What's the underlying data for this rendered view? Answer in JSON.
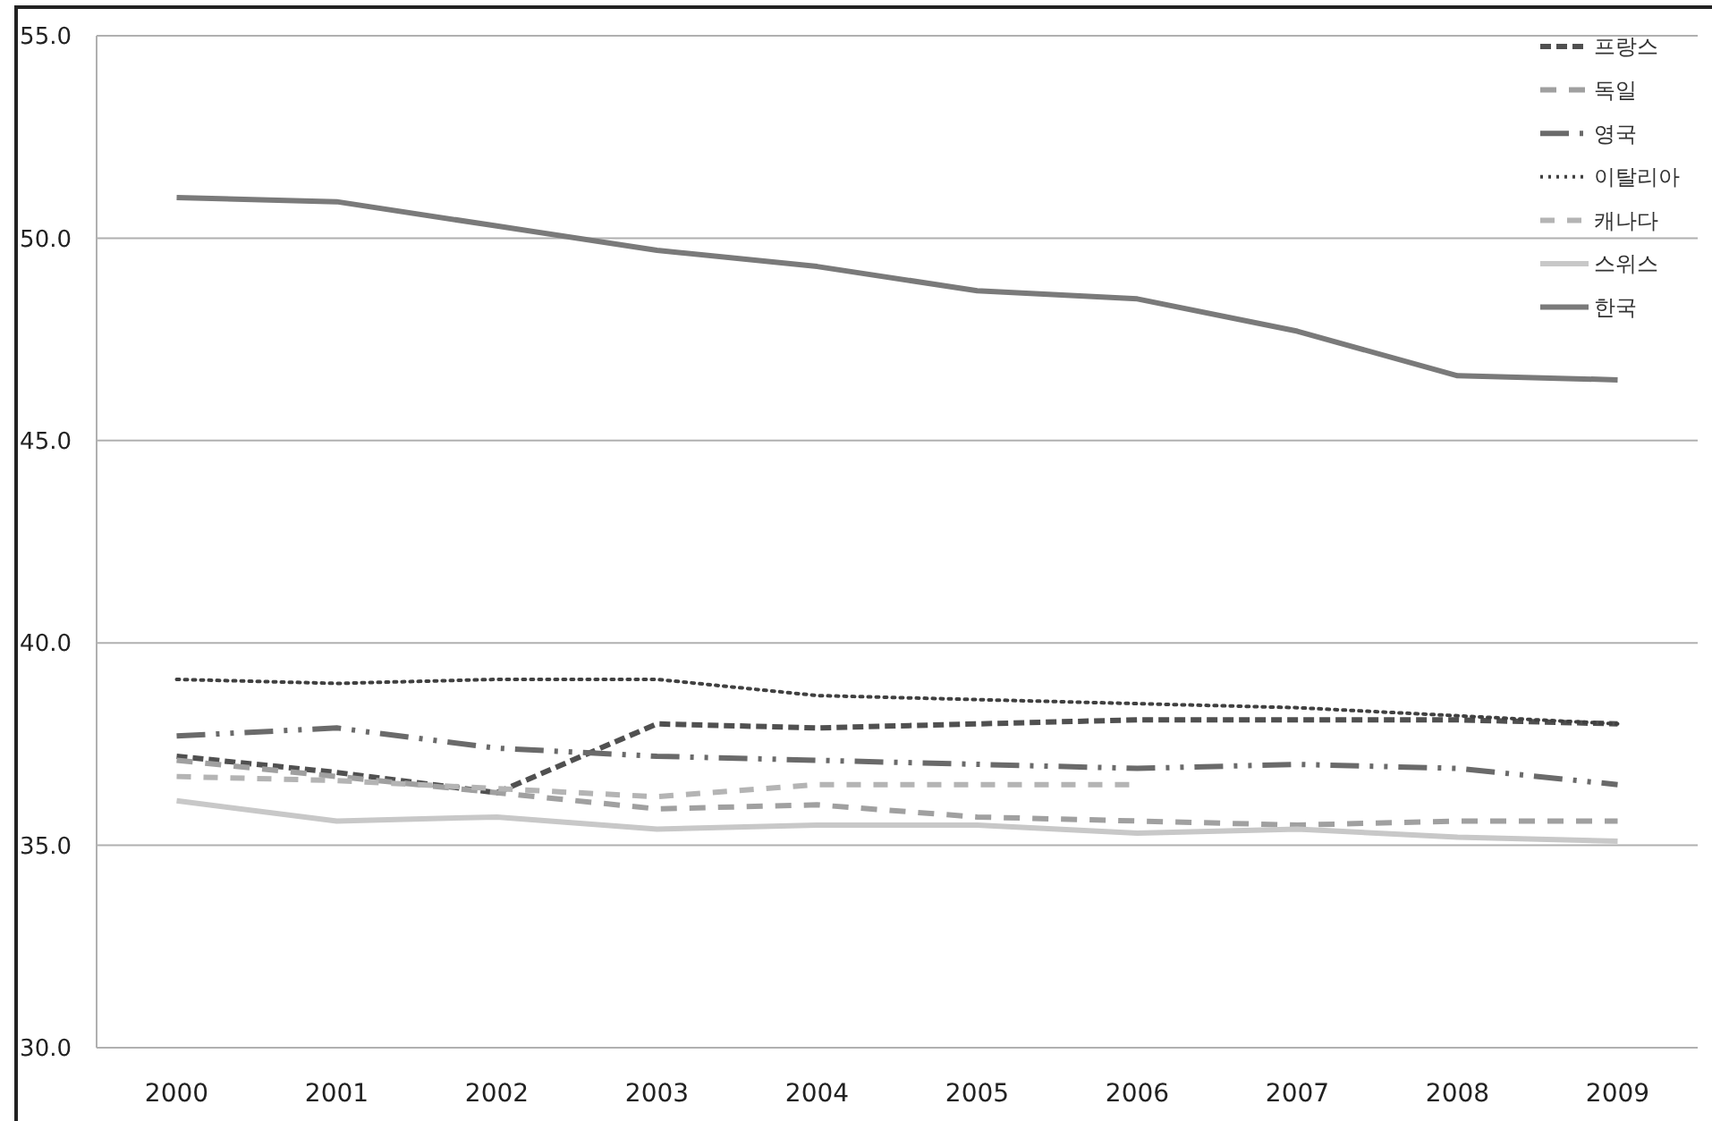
{
  "chart_data": {
    "type": "line",
    "categories": [
      "2000",
      "2001",
      "2002",
      "2003",
      "2004",
      "2005",
      "2006",
      "2007",
      "2008",
      "2009"
    ],
    "series": [
      {
        "name": "프랑스",
        "color": "#505050",
        "line_style": "dashed",
        "values": [
          37.2,
          36.8,
          36.3,
          38.0,
          37.9,
          38.0,
          38.1,
          38.1,
          38.1,
          38.0
        ]
      },
      {
        "name": "독일",
        "color": "#a0a0a0",
        "line_style": "dashed",
        "values": [
          37.1,
          36.7,
          36.3,
          35.9,
          36.0,
          35.7,
          35.6,
          35.5,
          35.6,
          35.6
        ]
      },
      {
        "name": "영국",
        "color": "#6a6a6a",
        "line_style": "dashed",
        "values": [
          37.7,
          37.9,
          37.4,
          37.2,
          37.1,
          37.0,
          36.9,
          37.0,
          36.9,
          36.5
        ]
      },
      {
        "name": "이탈리아",
        "color": "#404040",
        "line_style": "dotted",
        "values": [
          39.1,
          39.0,
          39.1,
          39.1,
          38.7,
          38.6,
          38.5,
          38.4,
          38.2,
          38.0
        ]
      },
      {
        "name": "캐나다",
        "color": "#b4b4b4",
        "line_style": "dashed",
        "values": [
          36.7,
          36.6,
          36.4,
          36.2,
          36.5,
          36.5,
          36.5,
          null,
          null,
          null
        ]
      },
      {
        "name": "스위스",
        "color": "#c8c8c8",
        "line_style": "solid",
        "values": [
          36.1,
          35.6,
          35.7,
          35.4,
          35.5,
          35.5,
          35.3,
          35.4,
          35.2,
          35.1
        ]
      },
      {
        "name": "한국",
        "color": "#7a7a7a",
        "line_style": "solid",
        "values": [
          51.0,
          50.9,
          50.3,
          49.7,
          49.3,
          48.7,
          48.5,
          47.7,
          46.6,
          46.5
        ]
      }
    ],
    "ylim": [
      30,
      55
    ],
    "yticks": [
      {
        "value": 30,
        "label": "30.0"
      },
      {
        "value": 35,
        "label": "35.0"
      },
      {
        "value": 40,
        "label": "40.0"
      },
      {
        "value": 45,
        "label": "45.0"
      },
      {
        "value": 50,
        "label": "50.0"
      },
      {
        "value": 55,
        "label": "55.0"
      }
    ],
    "grid": "y",
    "legend": "top right"
  }
}
